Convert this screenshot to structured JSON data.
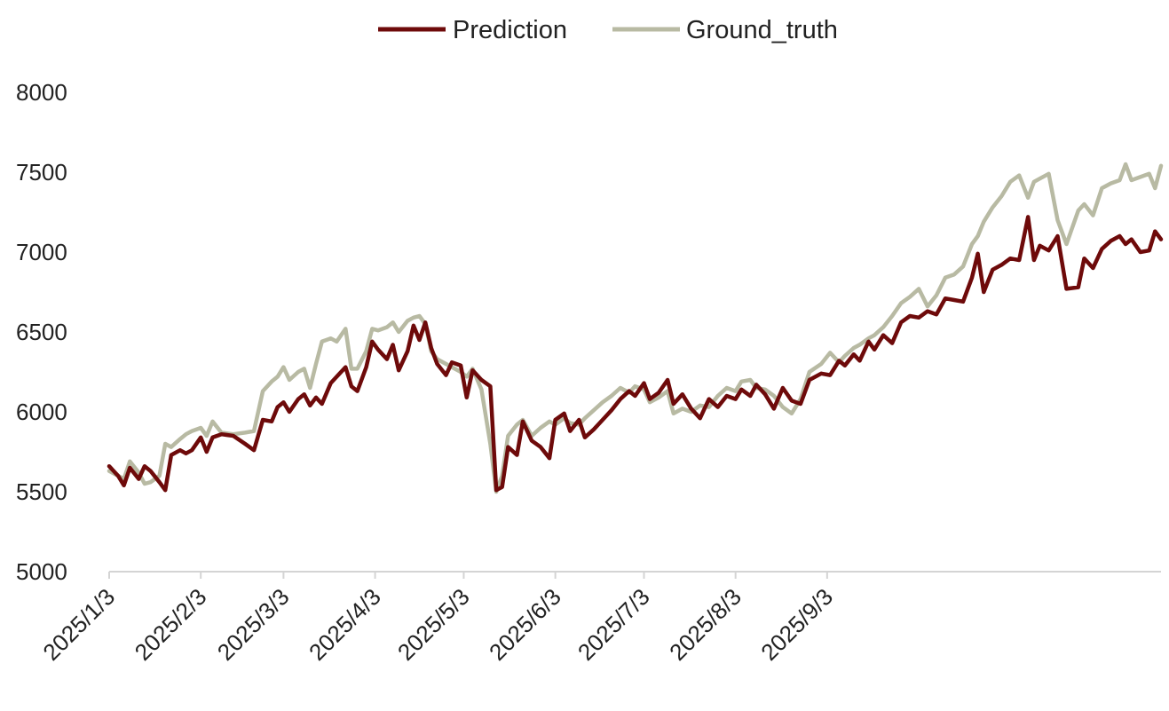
{
  "chart_data": {
    "type": "line",
    "title": "",
    "xlabel": "",
    "ylabel": "",
    "x_start": "2025/1/3",
    "x_end": "2025/9/26",
    "ylim": [
      5000,
      8000
    ],
    "yticks": [
      "5000",
      "5500",
      "6000",
      "6500",
      "7000",
      "7500",
      "8000"
    ],
    "xticks": [
      "2025/1/3",
      "2025/2/3",
      "2025/3/3",
      "2025/4/3",
      "2025/5/3",
      "2025/6/3",
      "2025/7/3",
      "2025/8/3",
      "2025/9/3"
    ],
    "grid": false,
    "legend": "top-center",
    "series": [
      {
        "name": "Prediction",
        "color": "#6e0a0a",
        "points": [
          [
            "2025/1/3",
            5660
          ],
          [
            "2025/1/6",
            5600
          ],
          [
            "2025/1/8",
            5540
          ],
          [
            "2025/1/10",
            5650
          ],
          [
            "2025/1/13",
            5580
          ],
          [
            "2025/1/15",
            5660
          ],
          [
            "2025/1/17",
            5630
          ],
          [
            "2025/1/20",
            5560
          ],
          [
            "2025/1/22",
            5510
          ],
          [
            "2025/1/24",
            5730
          ],
          [
            "2025/1/27",
            5760
          ],
          [
            "2025/1/29",
            5740
          ],
          [
            "2025/1/31",
            5760
          ],
          [
            "2025/2/3",
            5840
          ],
          [
            "2025/2/5",
            5750
          ],
          [
            "2025/2/7",
            5840
          ],
          [
            "2025/2/10",
            5860
          ],
          [
            "2025/2/14",
            5850
          ],
          [
            "2025/2/18",
            5800
          ],
          [
            "2025/2/21",
            5760
          ],
          [
            "2025/2/24",
            5950
          ],
          [
            "2025/2/27",
            5940
          ],
          [
            "2025/3/1",
            6030
          ],
          [
            "2025/3/3",
            6060
          ],
          [
            "2025/3/5",
            6000
          ],
          [
            "2025/3/8",
            6080
          ],
          [
            "2025/3/10",
            6110
          ],
          [
            "2025/3/12",
            6040
          ],
          [
            "2025/3/14",
            6090
          ],
          [
            "2025/3/16",
            6050
          ],
          [
            "2025/3/19",
            6180
          ],
          [
            "2025/3/21",
            6220
          ],
          [
            "2025/3/24",
            6280
          ],
          [
            "2025/3/26",
            6160
          ],
          [
            "2025/3/28",
            6130
          ],
          [
            "2025/3/31",
            6280
          ],
          [
            "2025/4/2",
            6440
          ],
          [
            "2025/4/4",
            6390
          ],
          [
            "2025/4/7",
            6330
          ],
          [
            "2025/4/9",
            6420
          ],
          [
            "2025/4/11",
            6260
          ],
          [
            "2025/4/14",
            6380
          ],
          [
            "2025/4/16",
            6540
          ],
          [
            "2025/4/18",
            6450
          ],
          [
            "2025/4/20",
            6560
          ],
          [
            "2025/4/22",
            6400
          ],
          [
            "2025/4/24",
            6300
          ],
          [
            "2025/4/27",
            6230
          ],
          [
            "2025/4/29",
            6310
          ],
          [
            "2025/5/2",
            6290
          ],
          [
            "2025/5/4",
            6090
          ],
          [
            "2025/5/6",
            6260
          ],
          [
            "2025/5/9",
            6200
          ],
          [
            "2025/5/12",
            6160
          ],
          [
            "2025/5/14",
            5510
          ],
          [
            "2025/5/16",
            5530
          ],
          [
            "2025/5/18",
            5780
          ],
          [
            "2025/5/21",
            5730
          ],
          [
            "2025/5/23",
            5940
          ],
          [
            "2025/5/26",
            5820
          ],
          [
            "2025/5/29",
            5780
          ],
          [
            "2025/6/1",
            5710
          ],
          [
            "2025/6/3",
            5950
          ],
          [
            "2025/6/6",
            5990
          ],
          [
            "2025/6/8",
            5880
          ],
          [
            "2025/6/11",
            5950
          ],
          [
            "2025/6/13",
            5840
          ],
          [
            "2025/6/16",
            5890
          ],
          [
            "2025/6/19",
            5950
          ],
          [
            "2025/6/22",
            6010
          ],
          [
            "2025/6/25",
            6080
          ],
          [
            "2025/6/28",
            6130
          ],
          [
            "2025/6/30",
            6100
          ],
          [
            "2025/7/3",
            6180
          ],
          [
            "2025/7/5",
            6080
          ],
          [
            "2025/7/8",
            6120
          ],
          [
            "2025/7/11",
            6200
          ],
          [
            "2025/7/13",
            6050
          ],
          [
            "2025/7/16",
            6110
          ],
          [
            "2025/7/19",
            6020
          ],
          [
            "2025/7/22",
            5960
          ],
          [
            "2025/7/25",
            6080
          ],
          [
            "2025/7/28",
            6030
          ],
          [
            "2025/7/31",
            6100
          ],
          [
            "2025/8/3",
            6080
          ],
          [
            "2025/8/5",
            6140
          ],
          [
            "2025/8/8",
            6100
          ],
          [
            "2025/8/10",
            6170
          ],
          [
            "2025/8/13",
            6110
          ],
          [
            "2025/8/16",
            6020
          ],
          [
            "2025/8/19",
            6150
          ],
          [
            "2025/8/22",
            6070
          ],
          [
            "2025/8/25",
            6050
          ],
          [
            "2025/8/28",
            6200
          ],
          [
            "2025/9/1",
            6240
          ],
          [
            "2025/9/4",
            6230
          ],
          [
            "2025/9/7",
            6320
          ],
          [
            "2025/9/9",
            6290
          ],
          [
            "2025/9/12",
            6360
          ],
          [
            "2025/9/14",
            6320
          ],
          [
            "2025/9/17",
            6440
          ],
          [
            "2025/9/19",
            6390
          ],
          [
            "2025/9/22",
            6480
          ],
          [
            "2025/9/25",
            6430
          ],
          [
            "2025/9/28",
            6560
          ],
          [
            "2025/10/1",
            6600
          ],
          [
            "2025/10/4",
            6590
          ],
          [
            "2025/10/7",
            6630
          ],
          [
            "2025/10/10",
            6610
          ],
          [
            "2025/10/13",
            6710
          ],
          [
            "2025/10/16",
            6700
          ],
          [
            "2025/10/19",
            6690
          ],
          [
            "2025/10/22",
            6840
          ],
          [
            "2025/10/24",
            6990
          ],
          [
            "2025/10/26",
            6750
          ],
          [
            "2025/10/29",
            6890
          ],
          [
            "2025/11/1",
            6920
          ],
          [
            "2025/11/4",
            6960
          ],
          [
            "2025/11/7",
            6950
          ],
          [
            "2025/11/10",
            7220
          ],
          [
            "2025/11/12",
            6950
          ],
          [
            "2025/11/14",
            7040
          ],
          [
            "2025/11/17",
            7010
          ],
          [
            "2025/11/20",
            7100
          ],
          [
            "2025/11/23",
            6770
          ],
          [
            "2025/11/27",
            6780
          ],
          [
            "2025/11/29",
            6960
          ],
          [
            "2025/12/2",
            6900
          ],
          [
            "2025/12/5",
            7020
          ],
          [
            "2025/12/8",
            7070
          ],
          [
            "2025/12/11",
            7100
          ],
          [
            "2025/12/13",
            7050
          ],
          [
            "2025/12/15",
            7080
          ],
          [
            "2025/12/18",
            7000
          ],
          [
            "2025/12/21",
            7010
          ],
          [
            "2025/12/23",
            7130
          ],
          [
            "2025/12/25",
            7080
          ]
        ]
      },
      {
        "name": "Ground_truth",
        "color": "#b8baa3",
        "points": [
          [
            "2025/1/3",
            5630
          ],
          [
            "2025/1/6",
            5600
          ],
          [
            "2025/1/8",
            5580
          ],
          [
            "2025/1/10",
            5690
          ],
          [
            "2025/1/13",
            5620
          ],
          [
            "2025/1/15",
            5550
          ],
          [
            "2025/1/17",
            5560
          ],
          [
            "2025/1/20",
            5600
          ],
          [
            "2025/1/22",
            5800
          ],
          [
            "2025/1/24",
            5780
          ],
          [
            "2025/1/27",
            5830
          ],
          [
            "2025/1/29",
            5860
          ],
          [
            "2025/1/31",
            5880
          ],
          [
            "2025/2/3",
            5900
          ],
          [
            "2025/2/5",
            5850
          ],
          [
            "2025/2/7",
            5940
          ],
          [
            "2025/2/10",
            5870
          ],
          [
            "2025/2/14",
            5860
          ],
          [
            "2025/2/18",
            5870
          ],
          [
            "2025/2/21",
            5880
          ],
          [
            "2025/2/24",
            6130
          ],
          [
            "2025/2/27",
            6190
          ],
          [
            "2025/3/1",
            6220
          ],
          [
            "2025/3/3",
            6280
          ],
          [
            "2025/3/5",
            6200
          ],
          [
            "2025/3/8",
            6250
          ],
          [
            "2025/3/10",
            6270
          ],
          [
            "2025/3/12",
            6150
          ],
          [
            "2025/3/14",
            6300
          ],
          [
            "2025/3/16",
            6440
          ],
          [
            "2025/3/19",
            6460
          ],
          [
            "2025/3/21",
            6440
          ],
          [
            "2025/3/24",
            6520
          ],
          [
            "2025/3/26",
            6270
          ],
          [
            "2025/3/28",
            6270
          ],
          [
            "2025/3/31",
            6380
          ],
          [
            "2025/4/2",
            6520
          ],
          [
            "2025/4/4",
            6510
          ],
          [
            "2025/4/7",
            6530
          ],
          [
            "2025/4/9",
            6560
          ],
          [
            "2025/4/11",
            6500
          ],
          [
            "2025/4/14",
            6570
          ],
          [
            "2025/4/16",
            6590
          ],
          [
            "2025/4/18",
            6600
          ],
          [
            "2025/4/20",
            6550
          ],
          [
            "2025/4/22",
            6380
          ],
          [
            "2025/4/24",
            6330
          ],
          [
            "2025/4/27",
            6300
          ],
          [
            "2025/4/29",
            6280
          ],
          [
            "2025/5/2",
            6250
          ],
          [
            "2025/5/4",
            6220
          ],
          [
            "2025/5/6",
            6270
          ],
          [
            "2025/5/9",
            6140
          ],
          [
            "2025/5/12",
            5800
          ],
          [
            "2025/5/14",
            5500
          ],
          [
            "2025/5/16",
            5600
          ],
          [
            "2025/5/18",
            5850
          ],
          [
            "2025/5/21",
            5920
          ],
          [
            "2025/5/23",
            5950
          ],
          [
            "2025/5/26",
            5850
          ],
          [
            "2025/5/29",
            5900
          ],
          [
            "2025/6/1",
            5940
          ],
          [
            "2025/6/3",
            5920
          ],
          [
            "2025/6/6",
            5960
          ],
          [
            "2025/6/8",
            5930
          ],
          [
            "2025/6/11",
            5920
          ],
          [
            "2025/6/13",
            5960
          ],
          [
            "2025/6/16",
            6010
          ],
          [
            "2025/6/19",
            6060
          ],
          [
            "2025/6/22",
            6100
          ],
          [
            "2025/6/25",
            6150
          ],
          [
            "2025/6/28",
            6120
          ],
          [
            "2025/6/30",
            6160
          ],
          [
            "2025/7/3",
            6140
          ],
          [
            "2025/7/5",
            6060
          ],
          [
            "2025/7/8",
            6090
          ],
          [
            "2025/7/11",
            6130
          ],
          [
            "2025/7/13",
            5990
          ],
          [
            "2025/7/16",
            6020
          ],
          [
            "2025/7/19",
            6000
          ],
          [
            "2025/7/22",
            6040
          ],
          [
            "2025/7/25",
            6030
          ],
          [
            "2025/7/28",
            6100
          ],
          [
            "2025/7/31",
            6150
          ],
          [
            "2025/8/3",
            6130
          ],
          [
            "2025/8/5",
            6190
          ],
          [
            "2025/8/8",
            6200
          ],
          [
            "2025/8/10",
            6150
          ],
          [
            "2025/8/13",
            6140
          ],
          [
            "2025/8/16",
            6100
          ],
          [
            "2025/8/19",
            6030
          ],
          [
            "2025/8/22",
            5990
          ],
          [
            "2025/8/25",
            6080
          ],
          [
            "2025/8/28",
            6250
          ],
          [
            "2025/9/1",
            6300
          ],
          [
            "2025/9/4",
            6370
          ],
          [
            "2025/9/7",
            6310
          ],
          [
            "2025/9/9",
            6350
          ],
          [
            "2025/9/12",
            6400
          ],
          [
            "2025/9/14",
            6420
          ],
          [
            "2025/9/17",
            6460
          ],
          [
            "2025/9/19",
            6480
          ],
          [
            "2025/9/22",
            6530
          ],
          [
            "2025/9/25",
            6600
          ],
          [
            "2025/9/28",
            6680
          ],
          [
            "2025/10/1",
            6720
          ],
          [
            "2025/10/4",
            6770
          ],
          [
            "2025/10/7",
            6660
          ],
          [
            "2025/10/10",
            6730
          ],
          [
            "2025/10/13",
            6840
          ],
          [
            "2025/10/16",
            6860
          ],
          [
            "2025/10/19",
            6910
          ],
          [
            "2025/10/22",
            7050
          ],
          [
            "2025/10/24",
            7100
          ],
          [
            "2025/10/26",
            7190
          ],
          [
            "2025/10/29",
            7280
          ],
          [
            "2025/11/1",
            7350
          ],
          [
            "2025/11/4",
            7440
          ],
          [
            "2025/11/7",
            7480
          ],
          [
            "2025/11/10",
            7340
          ],
          [
            "2025/11/12",
            7440
          ],
          [
            "2025/11/14",
            7460
          ],
          [
            "2025/11/17",
            7490
          ],
          [
            "2025/11/20",
            7200
          ],
          [
            "2025/11/23",
            7050
          ],
          [
            "2025/11/27",
            7260
          ],
          [
            "2025/11/29",
            7300
          ],
          [
            "2025/12/2",
            7230
          ],
          [
            "2025/12/5",
            7400
          ],
          [
            "2025/12/8",
            7430
          ],
          [
            "2025/12/11",
            7450
          ],
          [
            "2025/12/13",
            7550
          ],
          [
            "2025/12/15",
            7450
          ],
          [
            "2025/12/18",
            7470
          ],
          [
            "2025/12/21",
            7490
          ],
          [
            "2025/12/23",
            7400
          ],
          [
            "2025/12/25",
            7540
          ]
        ]
      }
    ]
  }
}
